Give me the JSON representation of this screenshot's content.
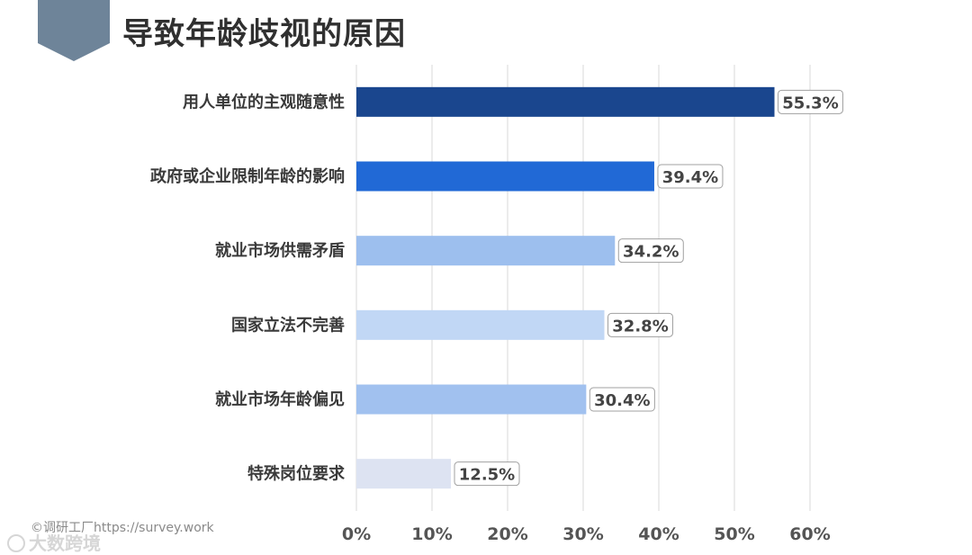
{
  "page": {
    "title": "导致年龄歧视的原因",
    "watermark_text": "©调研工厂https://survey.work",
    "watermark_logo": "大数跨境"
  },
  "colors": {
    "badge": "#6e8499",
    "gridline": "#d9d9d9",
    "label_box_border": "#a0a0a0"
  },
  "chart_data": {
    "type": "bar",
    "orientation": "horizontal",
    "title": "导致年龄歧视的原因",
    "xlabel": "",
    "ylabel": "",
    "categories": [
      "用人单位的主观随意性",
      "政府或企业限制年龄的影响",
      "就业市场供需矛盾",
      "国家立法不完善",
      "就业市场年龄偏见",
      "特殊岗位要求"
    ],
    "values": [
      55.3,
      39.4,
      34.2,
      32.8,
      30.4,
      12.5
    ],
    "value_labels": [
      "55.3%",
      "39.4%",
      "34.2%",
      "32.8%",
      "30.4%",
      "12.5%"
    ],
    "bar_colors": [
      "#1a468e",
      "#2169d6",
      "#9dbfee",
      "#c1d7f5",
      "#a1c1ef",
      "#dde3f2"
    ],
    "xlim": [
      0,
      60
    ],
    "xticks": [
      0,
      10,
      20,
      30,
      40,
      50,
      60
    ],
    "xtick_labels": [
      "0%",
      "10%",
      "20%",
      "30%",
      "40%",
      "50%",
      "60%"
    ],
    "grid": true,
    "legend": "none"
  }
}
